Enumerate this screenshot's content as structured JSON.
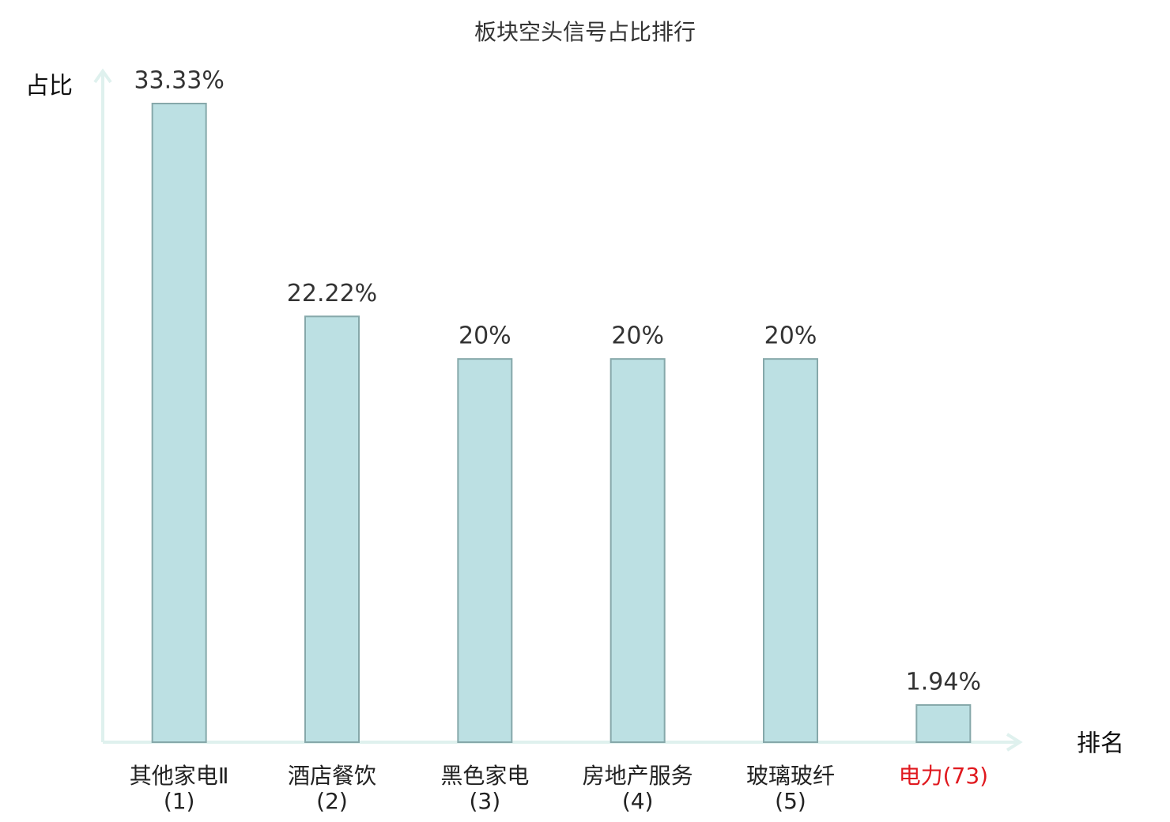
{
  "chart_data": {
    "type": "bar",
    "title": "板块空头信号占比排行",
    "y_label": "占比",
    "x_label": "排名",
    "categories": [
      "其他家电Ⅱ(1)",
      "酒店餐饮(2)",
      "黑色家电(3)",
      "房地产服务(4)",
      "玻璃玻纤(5)",
      "电力(73)"
    ],
    "category_colors": [
      "#222222",
      "#222222",
      "#222222",
      "#222222",
      "#222222",
      "#e0191f"
    ],
    "values": [
      33.33,
      22.22,
      20,
      20,
      20,
      1.94
    ],
    "value_labels": [
      "33.33%",
      "22.22%",
      "20%",
      "20%",
      "20%",
      "1.94%"
    ],
    "color": "#bce0e3",
    "edge_color": "#86a8aa",
    "ylim": [
      0,
      33.33
    ],
    "grid": false
  }
}
